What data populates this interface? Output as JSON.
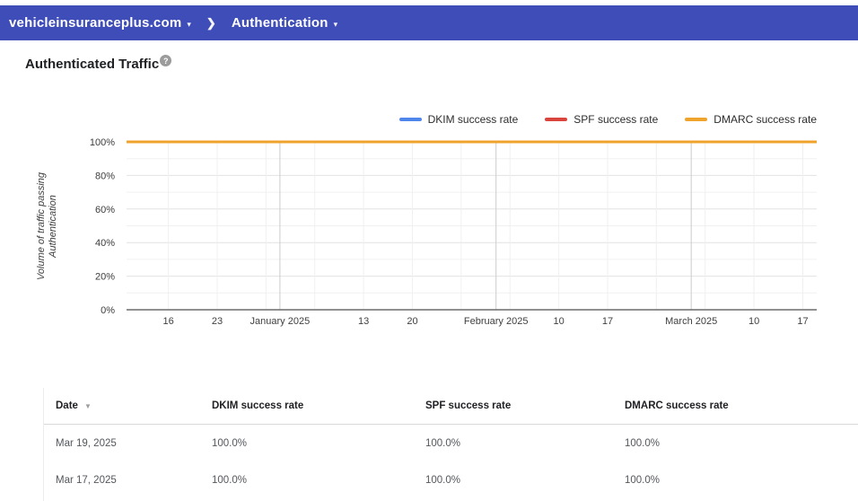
{
  "colors": {
    "topbar_bg": "#3f4db8",
    "axis": "#6b6b6b",
    "grid_major": "#e2e2e2",
    "grid_minor": "#f0f0f0",
    "grid_month": "#cccccc"
  },
  "header": {
    "domain": "vehicleinsuranceplus.com",
    "section": "Authentication",
    "chevron": "❯",
    "caret": "▾"
  },
  "page": {
    "title": "Authenticated Traffic",
    "help_glyph": "?"
  },
  "chart_data": {
    "type": "line",
    "title": "Authenticated Traffic",
    "ylabel_lines": [
      "Volume of traffic passing",
      "Authentication"
    ],
    "ylim": [
      0,
      100
    ],
    "grid": true,
    "legend_position": "top-right",
    "y_ticks": [
      {
        "value": 0,
        "label": "0%"
      },
      {
        "value": 20,
        "label": "20%"
      },
      {
        "value": 40,
        "label": "40%"
      },
      {
        "value": 60,
        "label": "60%"
      },
      {
        "value": 80,
        "label": "80%"
      },
      {
        "value": 100,
        "label": "100%"
      }
    ],
    "x_domain_days": [
      0,
      99
    ],
    "x_ticks": [
      {
        "day": 6,
        "label": "16",
        "kind": "week"
      },
      {
        "day": 13,
        "label": "23",
        "kind": "week"
      },
      {
        "day": 20,
        "label": "",
        "kind": "week"
      },
      {
        "day": 22,
        "label": "January 2025",
        "kind": "month"
      },
      {
        "day": 27,
        "label": "",
        "kind": "week"
      },
      {
        "day": 34,
        "label": "13",
        "kind": "week"
      },
      {
        "day": 41,
        "label": "20",
        "kind": "week"
      },
      {
        "day": 48,
        "label": "",
        "kind": "week"
      },
      {
        "day": 53,
        "label": "February 2025",
        "kind": "month"
      },
      {
        "day": 55,
        "label": "",
        "kind": "week"
      },
      {
        "day": 62,
        "label": "10",
        "kind": "week"
      },
      {
        "day": 69,
        "label": "17",
        "kind": "week"
      },
      {
        "day": 76,
        "label": "",
        "kind": "week"
      },
      {
        "day": 81,
        "label": "March 2025",
        "kind": "month"
      },
      {
        "day": 83,
        "label": "",
        "kind": "week"
      },
      {
        "day": 90,
        "label": "10",
        "kind": "week"
      },
      {
        "day": 97,
        "label": "17",
        "kind": "week"
      }
    ],
    "series": [
      {
        "name": "DKIM success rate",
        "color": "#4f86ec",
        "value_percent": 100
      },
      {
        "name": "SPF success rate",
        "color": "#d9453c",
        "value_percent": 100
      },
      {
        "name": "DMARC success rate",
        "color": "#efa32d",
        "value_percent": 100
      }
    ]
  },
  "table": {
    "columns": [
      "Date",
      "DKIM success rate",
      "SPF success rate",
      "DMARC success rate"
    ],
    "sort_column": "Date",
    "sort_icon": "▼",
    "rows": [
      [
        "Mar 19, 2025",
        "100.0%",
        "100.0%",
        "100.0%"
      ],
      [
        "Mar 17, 2025",
        "100.0%",
        "100.0%",
        "100.0%"
      ]
    ]
  }
}
